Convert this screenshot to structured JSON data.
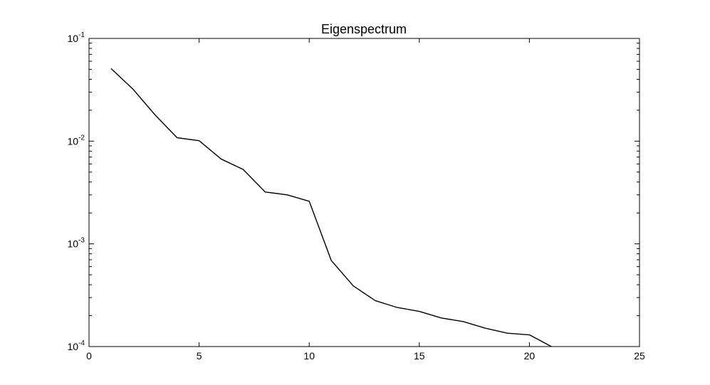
{
  "chart_data": {
    "type": "line",
    "title": "Eigenspectrum",
    "xlabel": "",
    "ylabel": "",
    "xlim": [
      0,
      25
    ],
    "ylim": [
      0.0001,
      0.1
    ],
    "yscale": "log",
    "grid": false,
    "legend": "none",
    "x_ticks": [
      0,
      5,
      10,
      15,
      20,
      25
    ],
    "x_tick_labels": [
      "0",
      "5",
      "10",
      "15",
      "20",
      "25"
    ],
    "y_ticks": [
      {
        "value": 0.0001,
        "base": "10",
        "exp": "-4"
      },
      {
        "value": 0.001,
        "base": "10",
        "exp": "-3"
      },
      {
        "value": 0.01,
        "base": "10",
        "exp": "-2"
      },
      {
        "value": 0.1,
        "base": "10",
        "exp": "-1"
      }
    ],
    "series": [
      {
        "color": "#000000",
        "x": [
          1,
          2,
          3,
          4,
          5,
          6,
          7,
          8,
          9,
          10,
          11,
          12,
          13,
          14,
          15,
          16,
          17,
          18,
          19,
          20,
          21
        ],
        "values": [
          0.051,
          0.032,
          0.018,
          0.0108,
          0.0101,
          0.0067,
          0.0053,
          0.0032,
          0.003,
          0.0026,
          0.00069,
          0.00039,
          0.00028,
          0.00024,
          0.00022,
          0.00019,
          0.000175,
          0.000151,
          0.000135,
          0.00013,
          0.0001
        ]
      }
    ]
  }
}
